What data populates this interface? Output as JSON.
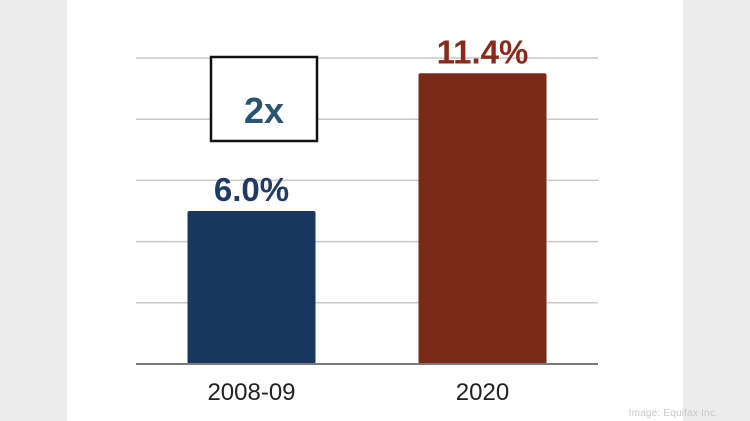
{
  "chart_data": {
    "type": "bar",
    "categories": [
      "2008-09",
      "2020"
    ],
    "values": [
      6.0,
      11.4
    ],
    "data_labels": [
      "6.0%",
      "11.4%"
    ],
    "bar_colors": [
      "#17375e",
      "#7b2a1a"
    ],
    "label_colors": [
      "#1f3a66",
      "#8b2a1b"
    ],
    "ylim": [
      0,
      12
    ],
    "grid": true,
    "annotation": {
      "text": "2x",
      "color": "#2a5570"
    }
  },
  "credit": "Image: Equifax Inc."
}
